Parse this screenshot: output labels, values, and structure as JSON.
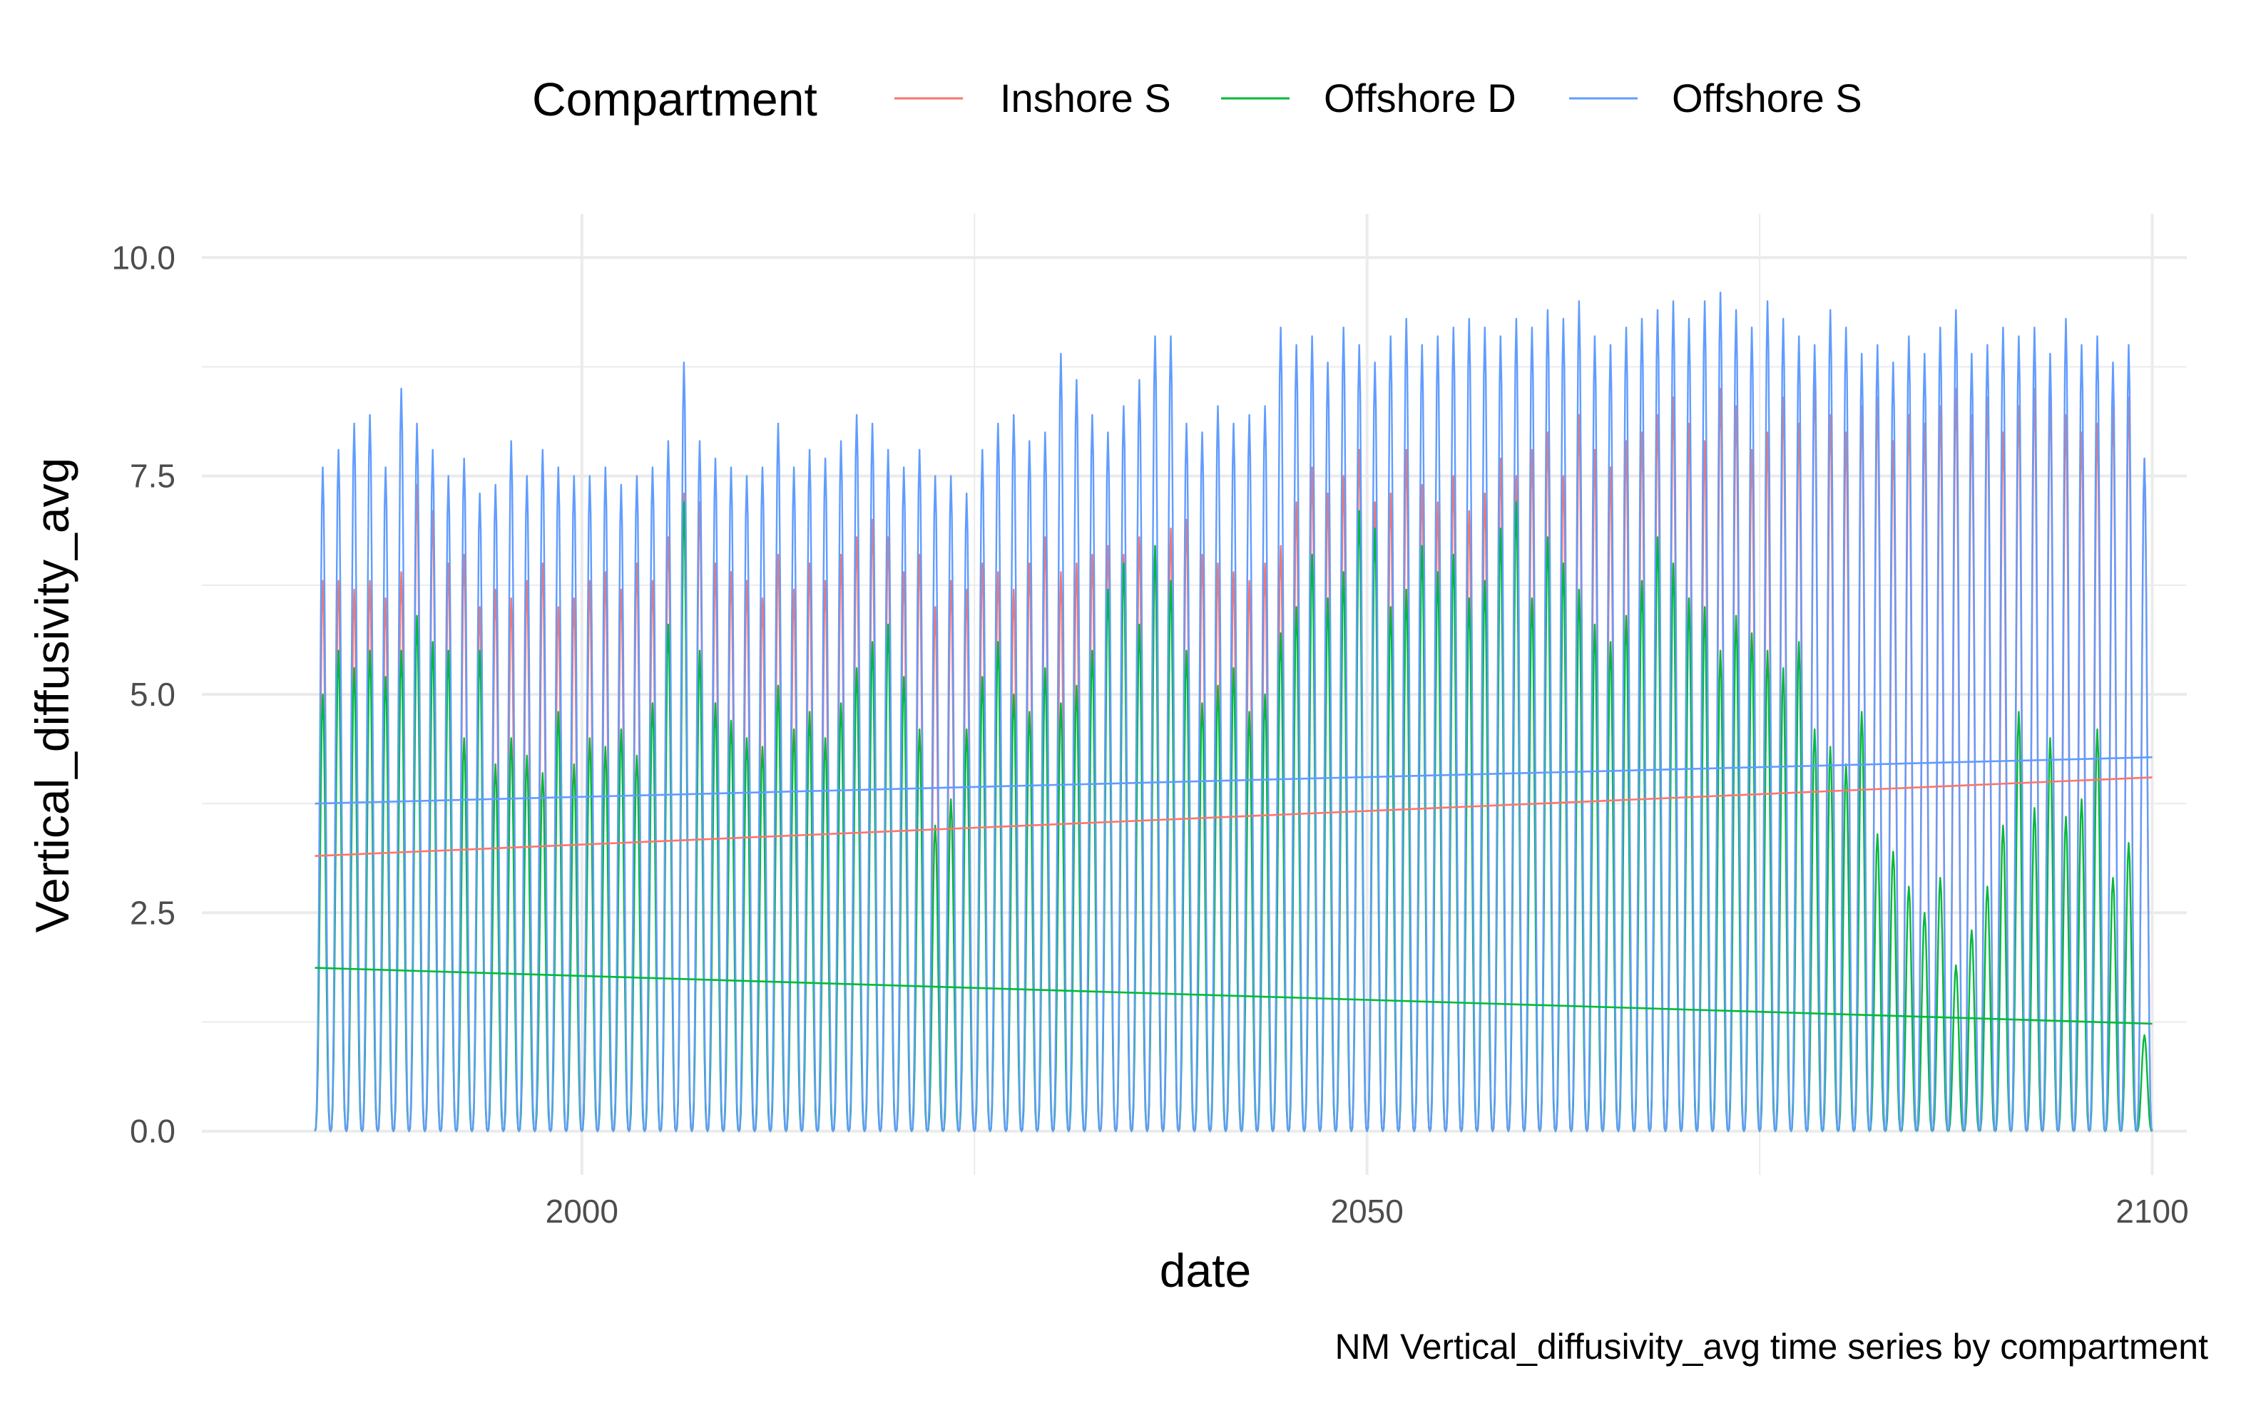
{
  "chart_data": {
    "type": "line",
    "title": "",
    "caption": "NM Vertical_diffusivity_avg time series by compartment",
    "xlabel": "date",
    "ylabel": "Vertical_diffusivity_avg",
    "x_range": [
      1975.8,
      2102.2
    ],
    "ylim": [
      -0.5,
      10.5
    ],
    "x_ticks": [
      2000,
      2050,
      2100
    ],
    "x_tick_labels": [
      "2000",
      "2050",
      "2100"
    ],
    "y_ticks": [
      0,
      2.5,
      5,
      7.5,
      10
    ],
    "y_tick_labels": [
      "0.0",
      "2.5",
      "5.0",
      "7.5",
      "10.0"
    ],
    "grid": true,
    "legend": {
      "title": "Compartment",
      "position": "top"
    },
    "series": [
      {
        "name": "Inshore S",
        "color": "#F8766D",
        "seasonal": {
          "start": 1983.0,
          "end": 2100.0,
          "annual_peaks": [
            6.3,
            6.3,
            6.2,
            6.3,
            6.1,
            6.4,
            7.4,
            7.1,
            6.5,
            6.6,
            6.0,
            6.2,
            6.1,
            6.3,
            6.5,
            6.0,
            6.1,
            6.3,
            6.4,
            6.2,
            6.5,
            6.3,
            6.8,
            7.3,
            7.2,
            6.5,
            6.4,
            6.3,
            6.1,
            6.6,
            6.2,
            6.5,
            6.3,
            6.6,
            6.8,
            7.0,
            6.8,
            6.4,
            6.6,
            6.0,
            6.3,
            6.2,
            6.5,
            6.4,
            6.2,
            6.5,
            6.8,
            6.4,
            6.5,
            6.6,
            6.7,
            6.6,
            6.8,
            6.7,
            6.9,
            7.0,
            6.6,
            6.5,
            6.4,
            6.3,
            6.5,
            6.7,
            7.2,
            7.6,
            7.3,
            7.5,
            7.8,
            7.2,
            7.3,
            7.8,
            7.4,
            7.2,
            7.5,
            7.1,
            7.3,
            7.7,
            7.5,
            7.8,
            8.0,
            7.5,
            8.2,
            7.8,
            7.6,
            7.9,
            8.0,
            8.2,
            8.4,
            8.1,
            7.9,
            8.5,
            8.3,
            7.8,
            8.0,
            8.4,
            8.1,
            8.6,
            8.2,
            8.0,
            8.3,
            8.4,
            7.9,
            8.2,
            8.1,
            8.3,
            8.5,
            8.2,
            8.4,
            8.0,
            8.3,
            8.5,
            8.4,
            8.2,
            8.0,
            8.1,
            8.3,
            8.4,
            7.7
          ],
          "trough": 0.0
        },
        "trend": {
          "x": [
            1983.0,
            2100.0
          ],
          "y": [
            3.15,
            4.05
          ]
        }
      },
      {
        "name": "Offshore D",
        "color": "#00BA38",
        "seasonal": {
          "start": 1983.0,
          "end": 2100.0,
          "annual_peaks": [
            5.0,
            5.5,
            5.3,
            5.5,
            5.2,
            5.5,
            5.9,
            5.6,
            5.5,
            4.5,
            5.5,
            4.2,
            4.5,
            4.3,
            4.1,
            4.8,
            4.2,
            4.5,
            4.4,
            4.6,
            4.3,
            4.9,
            5.8,
            7.2,
            5.5,
            4.9,
            4.7,
            4.5,
            4.4,
            5.1,
            4.6,
            4.8,
            4.5,
            4.9,
            5.3,
            5.6,
            5.8,
            5.2,
            4.6,
            3.5,
            3.8,
            4.6,
            5.2,
            5.6,
            5.0,
            4.8,
            5.3,
            4.9,
            5.1,
            5.5,
            6.2,
            6.5,
            5.8,
            6.7,
            6.3,
            5.5,
            4.9,
            5.1,
            5.3,
            4.8,
            5.0,
            5.7,
            6.0,
            6.6,
            6.1,
            6.4,
            7.1,
            6.9,
            6.0,
            6.2,
            6.7,
            6.4,
            6.6,
            6.1,
            6.3,
            6.9,
            7.2,
            6.1,
            6.8,
            6.5,
            6.2,
            5.8,
            5.6,
            5.9,
            6.3,
            6.8,
            6.5,
            6.1,
            6.0,
            5.5,
            5.9,
            5.7,
            5.5,
            5.3,
            5.6,
            4.6,
            4.4,
            4.2,
            4.8,
            3.4,
            3.2,
            2.8,
            2.5,
            2.9,
            1.9,
            2.3,
            2.8,
            3.5,
            4.8,
            3.7,
            4.5,
            3.6,
            3.8,
            4.6,
            2.9,
            3.3,
            1.1
          ],
          "trough": 0.0
        },
        "trend": {
          "x": [
            1983.0,
            2100.0
          ],
          "y": [
            1.87,
            1.23
          ]
        }
      },
      {
        "name": "Offshore S",
        "color": "#619CFF",
        "seasonal": {
          "start": 1983.0,
          "end": 2100.0,
          "annual_peaks": [
            7.6,
            7.8,
            8.1,
            8.2,
            7.6,
            8.5,
            8.1,
            7.8,
            7.5,
            7.7,
            7.3,
            7.4,
            7.9,
            7.5,
            7.8,
            7.6,
            7.5,
            7.5,
            7.6,
            7.4,
            7.5,
            7.6,
            7.9,
            8.8,
            7.9,
            7.7,
            7.6,
            7.5,
            7.6,
            8.1,
            7.6,
            7.8,
            7.7,
            7.9,
            8.2,
            8.1,
            7.8,
            7.6,
            7.8,
            7.5,
            7.5,
            7.3,
            7.8,
            8.1,
            8.2,
            7.9,
            8.0,
            8.9,
            8.6,
            8.2,
            8.0,
            8.3,
            8.6,
            9.1,
            9.1,
            8.1,
            8.0,
            8.3,
            8.1,
            8.2,
            8.3,
            9.2,
            9.0,
            9.1,
            8.8,
            9.2,
            9.0,
            8.8,
            9.1,
            9.3,
            9.0,
            9.1,
            9.2,
            9.3,
            9.2,
            9.1,
            9.3,
            9.2,
            9.4,
            9.3,
            9.5,
            9.1,
            9.0,
            9.2,
            9.3,
            9.4,
            9.5,
            9.3,
            9.5,
            9.6,
            9.4,
            9.2,
            9.5,
            9.3,
            9.1,
            9.0,
            9.4,
            9.2,
            8.9,
            9.0,
            8.8,
            9.1,
            8.9,
            9.2,
            9.4,
            8.9,
            9.0,
            9.2,
            9.1,
            9.2,
            8.9,
            9.3,
            9.0,
            9.1,
            8.8,
            9.0,
            7.7
          ],
          "trough": 0.0
        },
        "trend": {
          "x": [
            1983.0,
            2100.0
          ],
          "y": [
            3.75,
            4.28
          ]
        }
      }
    ]
  }
}
